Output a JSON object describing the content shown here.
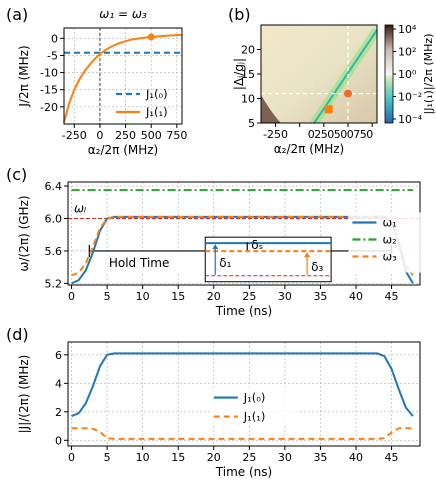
{
  "colors": {
    "blue": "#1f77b4",
    "orange": "#ff7f0e",
    "green": "#2ca02c",
    "red": "#d62728",
    "highlight_blue": "#4a90e2",
    "highlight_orange": "#ff7f0e"
  },
  "chart_data": [
    {
      "panel": "(a)",
      "type": "line",
      "title": "ω₁ = ω₃",
      "xlabel": "α₂/2π (MHz)",
      "ylabel": "J/2π (MHz)",
      "xlim": [
        -350,
        800
      ],
      "ylim": [
        -25,
        3
      ],
      "xticks": [
        -250,
        0,
        250,
        500,
        750
      ],
      "yticks": [
        0,
        -5,
        -10,
        -15,
        -20
      ],
      "grid": true,
      "legend_position": "lower-right",
      "vertical_markers": [
        0
      ],
      "series": [
        {
          "name": "J₁(₀)",
          "style": "dashed",
          "color": "blue",
          "x": [
            -350,
            800
          ],
          "y": [
            -4.2,
            -4.2
          ]
        },
        {
          "name": "J₁(₁)",
          "style": "solid",
          "color": "orange",
          "x": [
            -350,
            -300,
            -250,
            -200,
            -150,
            -100,
            -50,
            0,
            50,
            100,
            150,
            200,
            300,
            400,
            500,
            600,
            700,
            800
          ],
          "y": [
            -24.5,
            -19.0,
            -15.0,
            -12.0,
            -9.6,
            -7.7,
            -6.0,
            -4.6,
            -3.5,
            -2.6,
            -1.9,
            -1.3,
            -0.45,
            0.05,
            0.4,
            0.65,
            0.85,
            1.0
          ]
        }
      ],
      "markers": [
        {
          "x": 500,
          "y": 0.4,
          "shape": "circle",
          "color": "orange"
        }
      ]
    },
    {
      "panel": "(b)",
      "type": "heatmap",
      "xlabel": "α₂/2π (MHz)",
      "ylabel": "|Δⱼ/gⱼ|",
      "xlim": [
        -400,
        800
      ],
      "ylim": [
        5,
        25
      ],
      "xtick_labels": [
        "-250",
        "0",
        "250",
        "500",
        "750"
      ],
      "xtick_values": [
        -250,
        0,
        250,
        500,
        750
      ],
      "yticks": [
        5,
        10,
        15,
        20
      ],
      "colorbar_label": "|J₁(₁)|/2π (MHz)",
      "colorbar_ticks": [
        "10⁴",
        "10²",
        "10⁰",
        "10⁻²",
        "10⁻⁴"
      ],
      "colorbar_scale": "log",
      "colorbar_range": [
        -4,
        4
      ],
      "white_dashed_lines": {
        "x": 500,
        "y": 11
      },
      "markers": [
        {
          "x": 500,
          "y": 11,
          "shape": "circle",
          "color": "#e8702a"
        },
        {
          "x": 300,
          "y": 7.8,
          "shape": "square",
          "color": "#ff7f0e"
        }
      ]
    },
    {
      "panel": "(c)",
      "type": "line",
      "xlabel": "Time (ns)",
      "ylabel": "ω/(2π) (GHz)",
      "xlim": [
        -0.5,
        49
      ],
      "ylim": [
        5.18,
        6.45
      ],
      "xticks": [
        0,
        5,
        10,
        15,
        20,
        25,
        30,
        35,
        40,
        45
      ],
      "yticks": [
        5.2,
        5.6,
        6.0,
        6.4
      ],
      "grid": true,
      "legend_position": "right",
      "series": [
        {
          "name": "ω₁",
          "style": "solid",
          "color": "blue",
          "t": [
            0,
            1,
            2,
            3,
            4,
            5,
            6,
            44,
            45,
            46,
            47,
            48
          ],
          "y": [
            5.2,
            5.24,
            5.36,
            5.58,
            5.85,
            6.0,
            6.02,
            6.02,
            5.95,
            5.7,
            5.35,
            5.2
          ]
        },
        {
          "name": "ω₂",
          "style": "dashdot",
          "color": "green",
          "t": [
            0,
            48
          ],
          "y": [
            6.35,
            6.35
          ]
        },
        {
          "name": "ω₃",
          "style": "dashed",
          "color": "orange",
          "t": [
            0,
            1,
            2,
            3,
            4,
            5,
            6,
            44,
            45,
            46,
            47,
            48
          ],
          "y": [
            5.3,
            5.33,
            5.45,
            5.65,
            5.88,
            6.0,
            6.02,
            6.02,
            5.95,
            5.72,
            5.42,
            5.3
          ]
        }
      ],
      "reference_line": {
        "y": 6.0,
        "label": "ωₗ",
        "color": "red"
      },
      "annotations": {
        "hold_time_label": "Hold Time",
        "hold_time_range": [
          2.5,
          45
        ],
        "inset_labels": [
          "δ₁",
          "δ₃",
          "δₛ"
        ]
      }
    },
    {
      "panel": "(d)",
      "type": "line",
      "xlabel": "Time (ns)",
      "ylabel": "|J|/(2π) (MHz)",
      "xlim": [
        -0.5,
        49
      ],
      "ylim": [
        -0.4,
        6.9
      ],
      "xticks": [
        0,
        5,
        10,
        15,
        20,
        25,
        30,
        35,
        40,
        45
      ],
      "yticks": [
        0,
        2,
        4,
        6
      ],
      "grid": true,
      "legend_position": "center",
      "series": [
        {
          "name": "J₁(₀)",
          "style": "solid",
          "color": "blue",
          "t": [
            0,
            1,
            2,
            3,
            4,
            5,
            6,
            43,
            44,
            45,
            46,
            47,
            48
          ],
          "y": [
            1.7,
            1.9,
            2.6,
            3.8,
            5.2,
            6.0,
            6.1,
            6.1,
            5.9,
            5.0,
            3.6,
            2.3,
            1.7
          ]
        },
        {
          "name": "J₁(₁)",
          "style": "dashed",
          "color": "orange",
          "t": [
            0,
            2,
            3,
            4,
            5,
            6,
            43,
            44,
            45,
            46,
            48
          ],
          "y": [
            0.85,
            0.85,
            0.8,
            0.6,
            0.15,
            0.1,
            0.1,
            0.15,
            0.55,
            0.85,
            0.85
          ]
        }
      ]
    }
  ]
}
